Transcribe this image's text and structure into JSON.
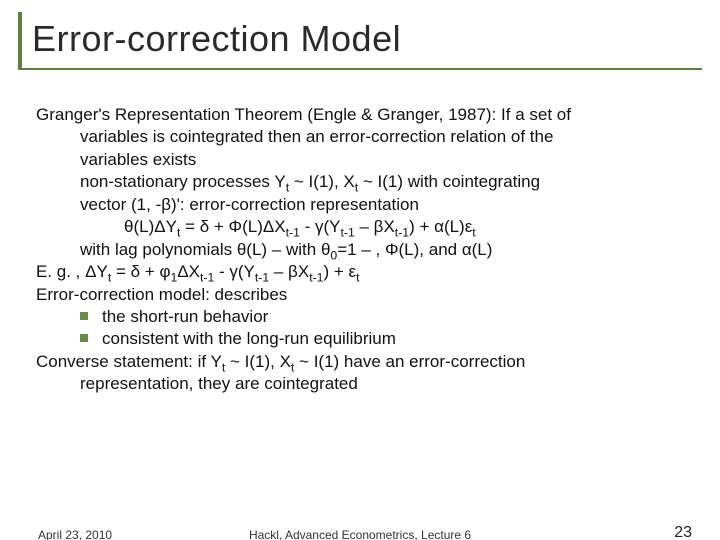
{
  "colors": {
    "accent": "#5f7f3f",
    "bullet": "#6a8a4a",
    "text": "#111111",
    "title_text": "#2a2a2a",
    "background": "#ffffff"
  },
  "typography": {
    "title_font": "Verdana",
    "title_size_pt": 28,
    "body_font": "Arial",
    "body_size_pt": 17,
    "footer_size_pt": 12
  },
  "title": "Error-correction Model",
  "body": {
    "l1": "Granger's Representation Theorem (Engle & Granger, 1987): If a set of",
    "l2": "variables is cointegrated then an error-correction relation of the",
    "l3": "variables exists",
    "l4_pre": "non-stationary processes Y",
    "l4_sub1": "t",
    "l4_mid1": " ~ I(1), X",
    "l4_sub2": "t",
    "l4_mid2": " ~ I(1) with cointegrating",
    "l5": "vector (1, -β)': error-correction representation",
    "l6_a": "θ(L)ΔY",
    "l6_s1": "t",
    "l6_b": " = δ + Φ(L)ΔX",
    "l6_s2": "t-1",
    "l6_c": " - γ(Y",
    "l6_s3": "t-1",
    "l6_d": " – βX",
    "l6_s4": "t-1",
    "l6_e": ") + α(L)ε",
    "l6_s5": "t",
    "l7_a": "with lag polynomials θ(L) – with θ",
    "l7_s1": "0",
    "l7_b": "=1 – , Φ(L), and α(L)",
    "l8_a": "E. g. , ΔY",
    "l8_s1": "t",
    "l8_b": " = δ + φ",
    "l8_s2": "1",
    "l8_c": "ΔX",
    "l8_s3": "t-1",
    "l8_d": " - γ(Y",
    "l8_s4": "t-1",
    "l8_e": " – βX",
    "l8_s5": "t-1",
    "l8_f": ") + ε",
    "l8_s6": "t",
    "l9": "Error-correction model: describes",
    "b1": "the short-run behavior",
    "b2": "consistent with the long-run equilibrium",
    "l10_a": "Converse statement: if Y",
    "l10_s1": "t",
    "l10_b": " ~ I(1), X",
    "l10_s2": "t",
    "l10_c": " ~ I(1) have an error-correction",
    "l11": "representation, they are cointegrated"
  },
  "footer": {
    "date": "April 23, 2010",
    "center": "Hackl, Advanced Econometrics, Lecture 6",
    "page": "23"
  }
}
